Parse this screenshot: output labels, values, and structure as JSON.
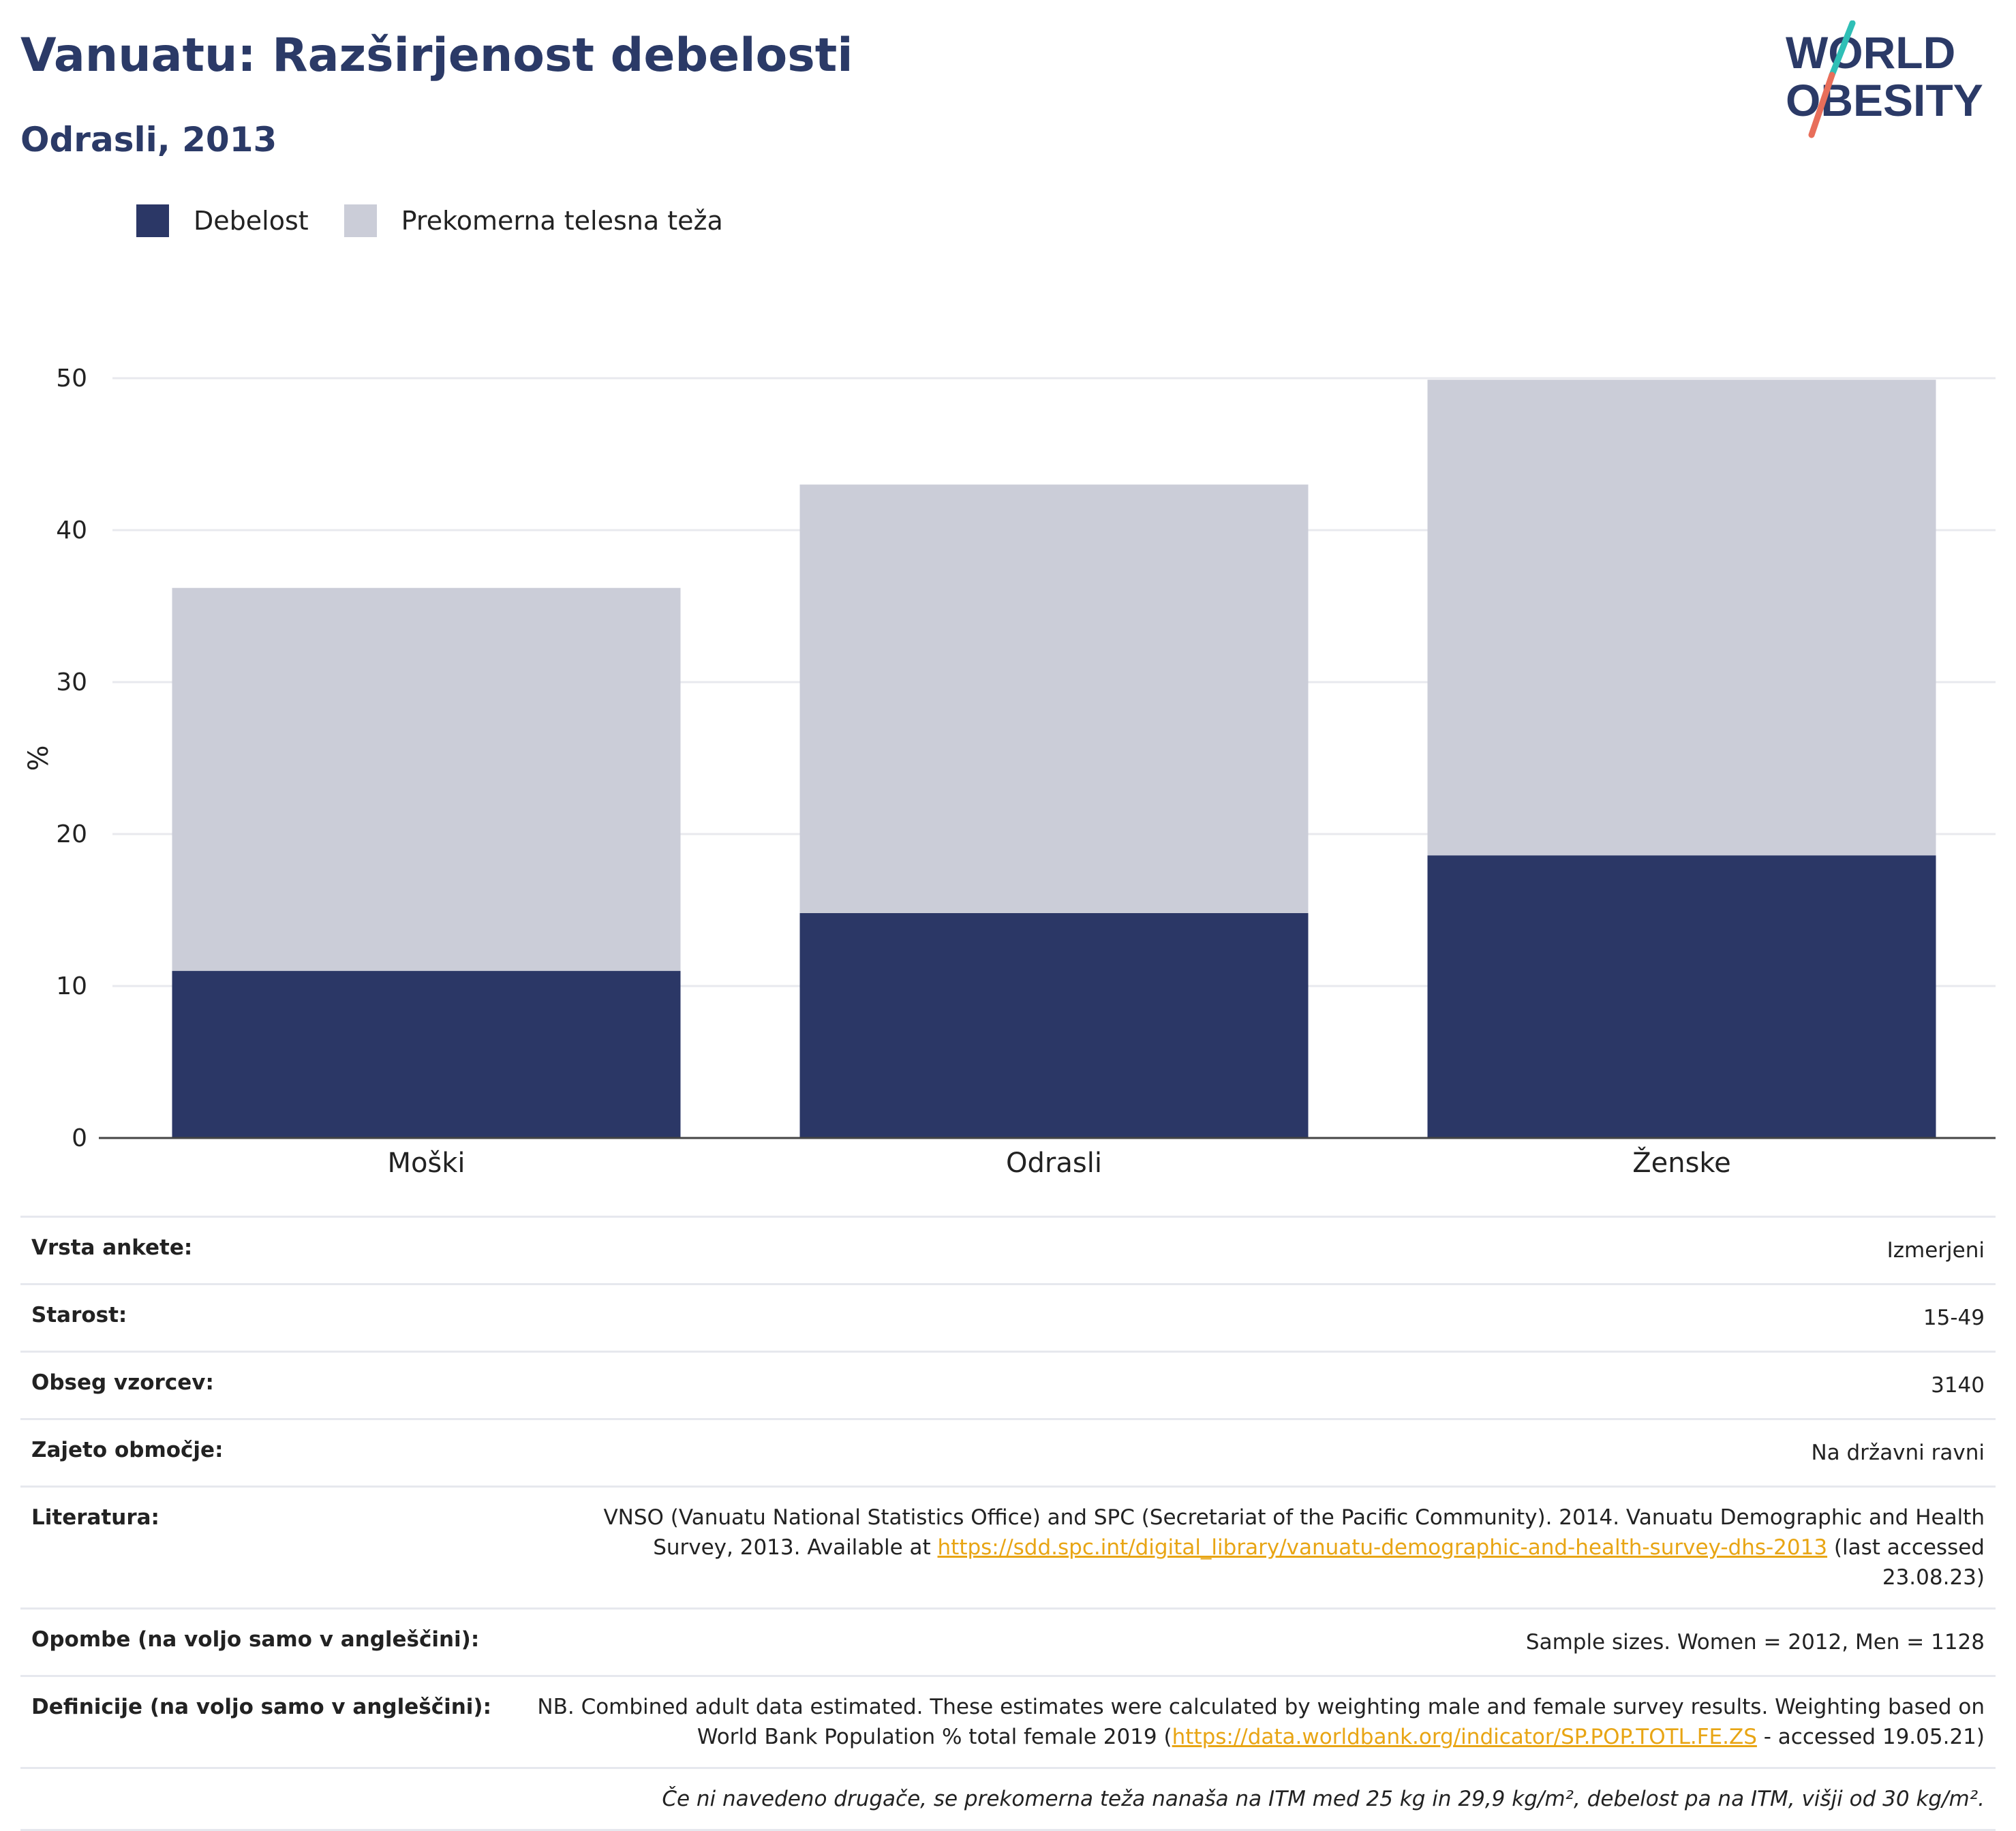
{
  "title": "Vanuatu: Razširjenost debelosti",
  "subtitle": "Odrasli, 2013",
  "logo": {
    "line1": "WORLD",
    "line2": "OBESITY",
    "accent_teal": "#2fbfb6",
    "accent_coral": "#e86e5a",
    "color": "#2b3a67"
  },
  "legend": [
    {
      "label": "Debelost",
      "color": "#2b3766"
    },
    {
      "label": "Prekomerna telesna teža",
      "color": "#cbcdd8"
    }
  ],
  "chart_data": {
    "type": "bar",
    "stacked": true,
    "categories": [
      "Moški",
      "Odrasli",
      "Ženske"
    ],
    "series": [
      {
        "name": "Debelost",
        "values": [
          11.0,
          14.8,
          18.6
        ],
        "color": "#2b3766"
      },
      {
        "name": "Prekomerna telesna teža",
        "values": [
          25.2,
          28.2,
          31.3
        ],
        "color": "#cbcdd8"
      }
    ],
    "ylabel": "%",
    "ylim": [
      0,
      50
    ],
    "yticks": [
      0,
      10,
      20,
      30,
      40,
      50
    ],
    "grid": true,
    "legend_position": "top-left"
  },
  "table": {
    "rows": [
      {
        "key": "Vrsta ankete:",
        "value": "Izmerjeni"
      },
      {
        "key": "Starost:",
        "value": "15-49"
      },
      {
        "key": "Obseg vzorcev:",
        "value": "3140"
      },
      {
        "key": "Zajeto območje:",
        "value": "Na državni ravni"
      }
    ],
    "literature": {
      "key": "Literatura:",
      "before": "VNSO (Vanuatu National Statistics Office) and SPC (Secretariat of the Pacific Community). 2014. Vanuatu Demographic and Health Survey, 2013. Available at ",
      "link": "https://sdd.spc.int/digital_library/vanuatu-demographic-and-health-survey-dhs-2013",
      "after": " (last accessed 23.08.23)"
    },
    "notes": {
      "key": "Opombe (na voljo samo v angleščini):",
      "value": "Sample sizes. Women = 2012, Men = 1128"
    },
    "definitions": {
      "key": "Definicije (na voljo samo v angleščini):",
      "before": "NB. Combined adult data estimated. These estimates were calculated by weighting male and female survey results. Weighting based on World Bank Population % total female 2019 (",
      "link": "https://data.worldbank.org/indicator/SP.POP.TOTL.FE.ZS",
      "after": " - accessed 19.05.21)"
    },
    "footnote": "Če ni navedeno drugače, se prekomerna teža nanaša na ITM med 25 kg in 29,9 kg/m², debelost pa na ITM, višji od 30 kg/m²."
  }
}
